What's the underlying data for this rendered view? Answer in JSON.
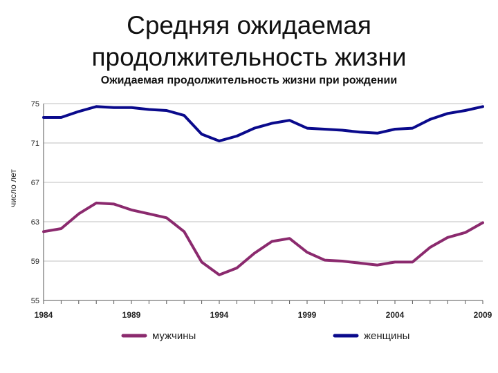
{
  "slide": {
    "title_line1": "Средняя ожидаемая",
    "title_line2": "продолжительность жизни"
  },
  "chart_data": {
    "type": "line",
    "title": "Ожидаемая продолжительность жизни при рождении",
    "xlabel": "",
    "ylabel": "число лет",
    "xlim": [
      1984,
      2009
    ],
    "ylim": [
      55,
      75
    ],
    "x_ticks": [
      1984,
      1989,
      1994,
      1999,
      2004,
      2009
    ],
    "y_ticks": [
      55,
      59,
      63,
      67,
      71,
      75
    ],
    "grid": "horizontal",
    "legend_position": "bottom",
    "x": [
      1984,
      1985,
      1986,
      1987,
      1988,
      1989,
      1990,
      1991,
      1992,
      1993,
      1994,
      1995,
      1996,
      1997,
      1998,
      1999,
      2000,
      2001,
      2002,
      2003,
      2004,
      2005,
      2006,
      2007,
      2008,
      2009
    ],
    "series": [
      {
        "name": "мужчины",
        "color": "#8B2A6E",
        "values": [
          62.0,
          62.3,
          63.8,
          64.9,
          64.8,
          64.2,
          63.8,
          63.4,
          62.0,
          58.9,
          57.6,
          58.3,
          59.8,
          61.0,
          61.3,
          59.9,
          59.1,
          59.0,
          58.8,
          58.6,
          58.9,
          58.9,
          60.4,
          61.4,
          61.9,
          62.9
        ]
      },
      {
        "name": "женщины",
        "color": "#0A0A8C",
        "values": [
          73.6,
          73.6,
          74.2,
          74.7,
          74.6,
          74.6,
          74.4,
          74.3,
          73.8,
          71.9,
          71.2,
          71.7,
          72.5,
          73.0,
          73.3,
          72.5,
          72.4,
          72.3,
          72.1,
          72.0,
          72.4,
          72.5,
          73.4,
          74.0,
          74.3,
          74.7
        ]
      }
    ]
  }
}
